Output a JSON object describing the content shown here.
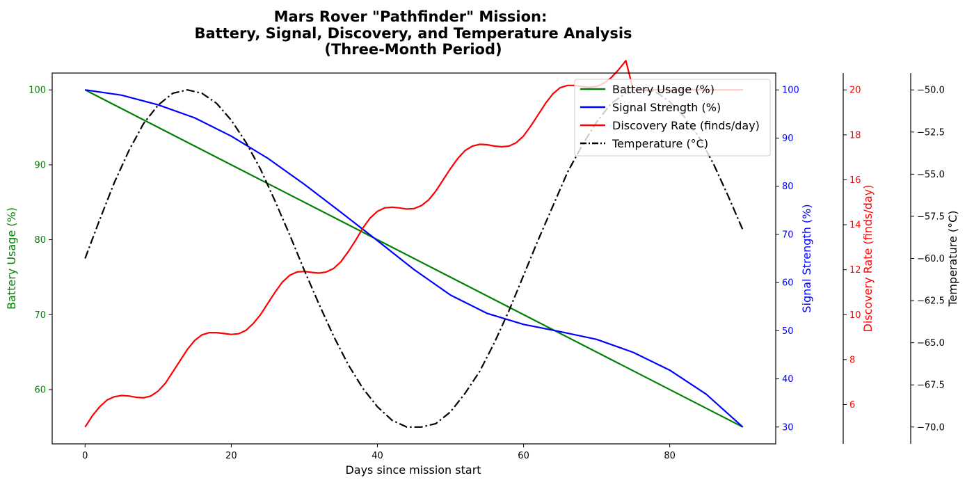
{
  "chart_data": {
    "type": "line",
    "title_lines": [
      "Mars Rover \"Pathfinder\" Mission:",
      "Battery, Signal, Discovery, and Temperature Analysis",
      "(Three-Month Period)"
    ],
    "xlabel": "Days since mission start",
    "xlim": [
      -4.5,
      94.5
    ],
    "x_ticks": [
      0,
      20,
      40,
      60,
      80
    ],
    "grid": false,
    "legend_position": "top-right",
    "axes": [
      {
        "id": "battery",
        "label": "Battery Usage (%)",
        "color": "#008000",
        "side": "left",
        "ylim": [
          52.75,
          102.25
        ],
        "ticks": [
          60,
          70,
          80,
          90,
          100
        ],
        "tick_labels": [
          "60",
          "70",
          "80",
          "90",
          "100"
        ]
      },
      {
        "id": "signal",
        "label": "Signal Strength (%)",
        "color": "#0000ff",
        "side": "right",
        "ylim": [
          26.5,
          103.5
        ],
        "ticks": [
          30,
          40,
          50,
          60,
          70,
          80,
          90,
          100
        ],
        "tick_labels": [
          "30",
          "40",
          "50",
          "60",
          "70",
          "80",
          "90",
          "100"
        ]
      },
      {
        "id": "discovery",
        "label": "Discovery Rate (finds/day)",
        "color": "#ff0000",
        "side": "right",
        "ylim": [
          4.25,
          20.75
        ],
        "ticks": [
          6,
          8,
          10,
          12,
          14,
          16,
          18,
          20
        ],
        "tick_labels": [
          "6",
          "8",
          "10",
          "12",
          "14",
          "16",
          "18",
          "20"
        ]
      },
      {
        "id": "temperature",
        "label": "Temperature (°C)",
        "color": "#000000",
        "side": "right",
        "ylim": [
          -71,
          -49
        ],
        "ticks": [
          -70,
          -67.5,
          -65,
          -62.5,
          -60,
          -57.5,
          -55,
          -52.5,
          -50
        ],
        "tick_labels": [
          "−70.0",
          "−67.5",
          "−65.0",
          "−62.5",
          "−60.0",
          "−57.5",
          "−55.0",
          "−52.5",
          "−50.0"
        ]
      }
    ],
    "series": [
      {
        "name": "Battery Usage (%)",
        "axis": "battery",
        "color": "#008000",
        "dash": "solid",
        "x": [
          0,
          90
        ],
        "y": [
          100,
          55
        ]
      },
      {
        "name": "Signal Strength (%)",
        "axis": "signal",
        "color": "#0000ff",
        "dash": "solid",
        "x": [
          0,
          5,
          10,
          15,
          20,
          25,
          30,
          35,
          40,
          45,
          50,
          55,
          60,
          65,
          70,
          75,
          80,
          85,
          90
        ],
        "y": [
          100,
          98.9,
          96.9,
          94.2,
          90.4,
          85.8,
          80.4,
          74.6,
          68.7,
          62.7,
          57.4,
          53.6,
          51.3,
          49.8,
          48.2,
          45.5,
          41.8,
          36.8,
          30
        ]
      },
      {
        "name": "Discovery Rate (finds/day)",
        "axis": "discovery",
        "color": "#ff0000",
        "dash": "solid",
        "x": [
          0,
          1,
          2,
          3,
          4,
          5,
          6,
          7,
          8,
          9,
          10,
          11,
          12,
          13,
          14,
          15,
          16,
          17,
          18,
          19,
          20,
          21,
          22,
          23,
          24,
          25,
          26,
          27,
          28,
          29,
          30,
          31,
          32,
          33,
          34,
          35,
          36,
          37,
          38,
          39,
          40,
          41,
          42,
          43,
          44,
          45,
          46,
          47,
          48,
          49,
          50,
          51,
          52,
          53,
          54,
          55,
          56,
          57,
          58,
          59,
          60,
          61,
          62,
          63,
          64,
          65,
          66,
          67,
          68,
          69,
          70,
          71,
          72,
          73,
          74,
          75,
          76,
          77,
          78,
          79,
          80,
          81,
          82,
          83,
          84,
          85,
          86,
          87,
          88,
          89,
          90
        ],
        "y": [
          5.0,
          5.5,
          5.9,
          6.2,
          6.35,
          6.4,
          6.38,
          6.32,
          6.3,
          6.38,
          6.6,
          6.95,
          7.45,
          7.95,
          8.45,
          8.85,
          9.1,
          9.2,
          9.2,
          9.16,
          9.12,
          9.15,
          9.3,
          9.6,
          10.0,
          10.5,
          11.0,
          11.45,
          11.75,
          11.9,
          11.92,
          11.88,
          11.85,
          11.9,
          12.05,
          12.35,
          12.8,
          13.3,
          13.85,
          14.3,
          14.6,
          14.75,
          14.78,
          14.75,
          14.7,
          14.72,
          14.85,
          15.1,
          15.5,
          16.0,
          16.5,
          16.95,
          17.3,
          17.5,
          17.58,
          17.56,
          17.5,
          17.47,
          17.5,
          17.65,
          17.95,
          18.4,
          18.9,
          19.4,
          19.82,
          20.1,
          20.2,
          20.2,
          20.15,
          20.12,
          20.15,
          20.3,
          20.55,
          20.9,
          21.3,
          20,
          20,
          20,
          20,
          20,
          20,
          20,
          20,
          20,
          20,
          20,
          20,
          20,
          20,
          20,
          20
        ]
      },
      {
        "name": "Temperature (°C)",
        "axis": "temperature",
        "color": "#000000",
        "dash": "dashdot",
        "x": [
          0,
          2,
          4,
          6,
          8,
          10,
          12,
          14,
          16,
          18,
          20,
          22,
          24,
          26,
          28,
          30,
          32,
          34,
          36,
          38,
          40,
          42,
          44,
          46,
          48,
          50,
          52,
          54,
          56,
          58,
          60,
          62,
          64,
          66,
          68,
          70,
          72,
          74,
          76,
          78,
          80,
          82,
          84,
          86,
          88,
          90
        ],
        "y": [
          -60.0,
          -57.7,
          -55.5,
          -53.6,
          -52.0,
          -50.9,
          -50.2,
          -50.0,
          -50.2,
          -50.8,
          -51.8,
          -53.1,
          -54.7,
          -56.6,
          -58.6,
          -60.7,
          -62.7,
          -64.6,
          -66.3,
          -67.7,
          -68.8,
          -69.6,
          -70.0,
          -70.0,
          -69.8,
          -69.1,
          -68.0,
          -66.7,
          -65.0,
          -63.1,
          -61.0,
          -58.9,
          -56.9,
          -54.9,
          -53.3,
          -51.9,
          -50.8,
          -50.2,
          -50.0,
          -50.1,
          -50.7,
          -51.6,
          -52.8,
          -54.4,
          -56.3,
          -58.3
        ]
      }
    ]
  }
}
